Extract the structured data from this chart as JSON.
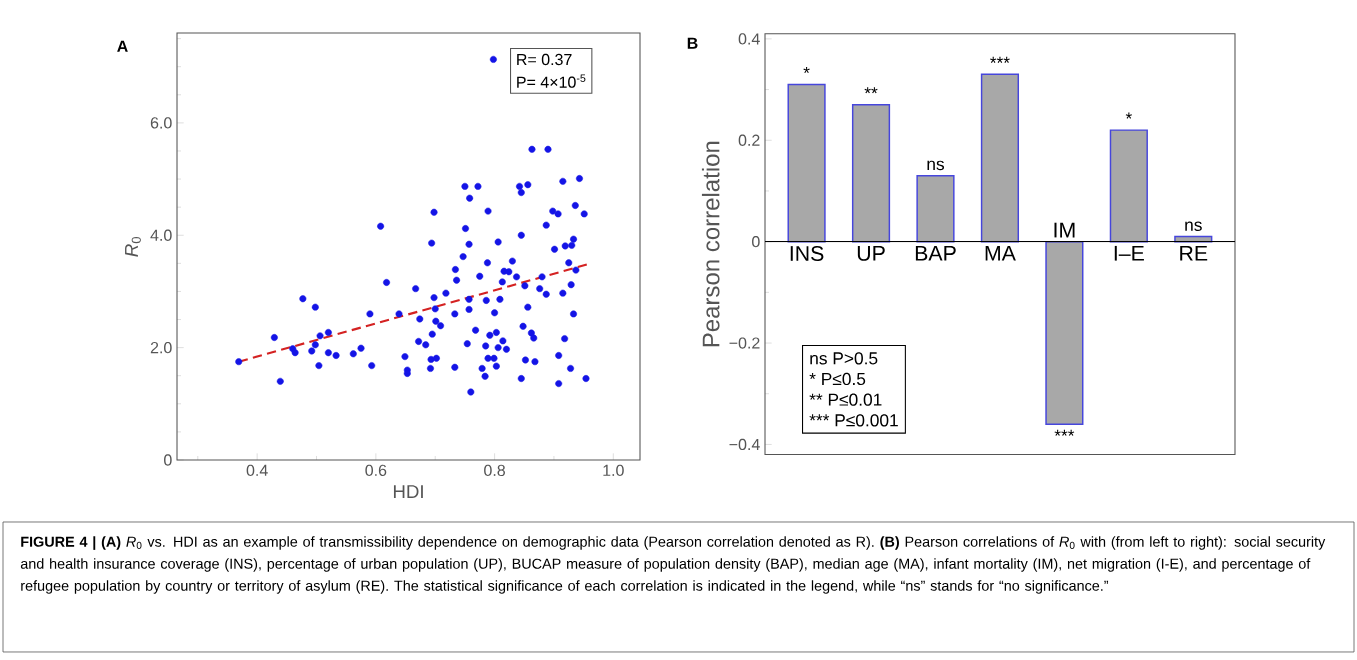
{
  "chart_data": [
    {
      "type": "scatter",
      "xlabel": "HDI",
      "ylabel": "*R*$_{0}$",
      "xlim": [
        0.265,
        1.045
      ],
      "ylim": [
        0,
        7.6
      ],
      "xticks": [
        {
          "value": 0.3,
          "label": null
        },
        0.4,
        {
          "value": 0.5,
          "label": null
        },
        0.6,
        {
          "value": 0.7,
          "label": null
        },
        0.8,
        {
          "value": 0.9,
          "label": null
        },
        {
          "value": 1.0,
          "label": "1.0"
        }
      ],
      "yticks": [
        0,
        {
          "value": 0.5,
          "label": null
        },
        {
          "value": 1.0,
          "label": null
        },
        {
          "value": 1.5,
          "label": null
        },
        {
          "value": 2.0,
          "label": "2.0"
        },
        {
          "value": 2.5,
          "label": null
        },
        {
          "value": 3.0,
          "label": null
        },
        {
          "value": 3.5,
          "label": null
        },
        {
          "value": 4.0,
          "label": "4.0"
        },
        {
          "value": 4.5,
          "label": null
        },
        {
          "value": 5.0,
          "label": null
        },
        {
          "value": 5.5,
          "label": null
        },
        {
          "value": 6.0,
          "label": "6.0"
        },
        {
          "value": 6.5,
          "label": null
        },
        {
          "value": 7.0,
          "label": null
        },
        {
          "value": 7.5,
          "label": null
        }
      ],
      "annotations": [
        "A",
        "R= 0.37",
        "P= 4×10$^{-5}$",
        "**FIGURE 4 | (A)** *R*$_{0}$ vs. HDI as an example of transmissibility dependence on demographic data (Pearson correlation denoted as R). **(B)** Pearson correlations of *R*$_{0}$ with (from left to right): social security and health insurance coverage (INS), percentage of urban population (UP), BUCAP measure of population density (BAP), median age (MA), infant mortality (IM), net migration (I-E), and percentage of refugee population by country or territory of asylum (RE). The statistical significance of each correlation is indicated in the legend, while “ns” stands for “no significance.”"
      ],
      "series": [
        {
          "type": "scatter",
          "color": "#1414e6",
          "marker": "circle",
          "x": [
            0.369,
            0.429,
            0.439,
            0.46,
            0.464,
            0.477,
            0.492,
            0.498,
            0.498,
            0.504,
            0.506,
            0.52,
            0.52,
            0.533,
            0.562,
            0.575,
            0.59,
            0.593,
            0.608,
            0.618,
            0.639,
            0.798,
            0.649,
            0.653,
            0.653,
            0.667,
            0.674,
            0.672,
            0.684,
            0.692,
            0.693,
            0.702,
            0.694,
            0.698,
            0.695,
            0.698,
            0.7,
            0.701,
            0.709,
            0.718,
            0.733,
            0.733,
            0.734,
            0.736,
            0.747,
            0.751,
            0.75,
            0.758,
            0.772,
            0.757,
            0.757,
            0.757,
            0.754,
            0.76,
            0.768,
            0.775,
            0.779,
            0.784,
            0.785,
            0.786,
            0.788,
            0.789,
            0.789,
            0.792,
            0.799,
            0.8,
            0.803,
            0.803,
            0.806,
            0.809,
            0.806,
            0.813,
            0.814,
            0.816,
            0.82,
            0.824,
            0.83,
            0.837,
            0.845,
            0.842,
            0.845,
            0.856,
            0.845,
            0.848,
            0.851,
            0.852,
            0.856,
            0.862,
            0.866,
            0.868,
            0.863,
            0.89,
            0.876,
            0.88,
            0.887,
            0.887,
            0.898,
            0.907,
            0.901,
            0.908,
            0.908,
            0.915,
            0.915,
            0.918,
            0.919,
            0.925,
            0.929,
            0.928,
            0.93,
            0.933,
            0.933,
            0.936,
            0.937,
            0.943,
            0.951,
            0.954
          ],
          "values": [
            1.75,
            2.18,
            1.4,
            1.98,
            1.91,
            2.87,
            1.94,
            2.72,
            2.05,
            1.68,
            2.21,
            2.27,
            1.91,
            1.86,
            1.89,
            1.99,
            2.6,
            1.68,
            4.16,
            3.16,
            2.6,
            7.13,
            1.84,
            1.6,
            1.54,
            3.05,
            2.51,
            2.11,
            2.05,
            1.63,
            1.79,
            1.81,
            3.86,
            4.41,
            2.24,
            2.89,
            2.69,
            2.47,
            2.39,
            2.97,
            2.6,
            1.65,
            3.39,
            3.2,
            3.62,
            4.12,
            4.87,
            4.66,
            4.87,
            3.84,
            2.86,
            2.68,
            2.07,
            1.21,
            2.31,
            3.27,
            1.63,
            1.49,
            2.03,
            2.84,
            3.51,
            4.43,
            1.81,
            2.22,
            1.81,
            2.62,
            1.67,
            2.27,
            3.88,
            2.86,
            2.0,
            3.17,
            2.12,
            3.36,
            1.97,
            3.35,
            3.54,
            3.26,
            4.0,
            4.87,
            4.76,
            4.9,
            1.45,
            2.38,
            3.1,
            1.78,
            2.72,
            2.26,
            2.17,
            1.75,
            5.53,
            5.53,
            3.05,
            3.26,
            2.95,
            4.18,
            4.43,
            4.38,
            3.75,
            1.86,
            1.36,
            4.96,
            2.97,
            2.16,
            3.81,
            3.51,
            3.12,
            1.63,
            3.82,
            2.6,
            3.93,
            4.53,
            3.38,
            5.01,
            4.38,
            1.45
          ]
        },
        {
          "type": "line",
          "color": "#d42222",
          "line_style": "dashed",
          "marker": "none",
          "x": [
            0.369,
            0.956
          ],
          "values": [
            1.75,
            3.48
          ]
        }
      ]
    },
    {
      "type": "bar",
      "ylabel": "Pearson correlation",
      "categories": [
        "INS",
        "UP",
        "BAP",
        "MA",
        "IM",
        "I–E",
        "RE"
      ],
      "values": [
        0.31,
        0.27,
        0.13,
        0.33,
        -0.36,
        0.22,
        0.01
      ],
      "color": "#a8a8a8",
      "ylim": [
        -0.42,
        0.41
      ],
      "yticks": [
        {
          "value": -0.4,
          "label": "−0.4"
        },
        {
          "value": -0.3,
          "label": null
        },
        {
          "value": -0.2,
          "label": "−0.2"
        },
        {
          "value": -0.1,
          "label": null
        },
        0,
        {
          "value": 0.1,
          "label": null
        },
        0.2,
        {
          "value": 0.3,
          "label": null
        },
        0.4
      ],
      "annotations": [
        "B",
        {
          "text": "*",
          "x": "INS",
          "y": 0.31
        },
        {
          "text": "**",
          "x": "UP",
          "y": 0.27
        },
        {
          "text": "ns",
          "x": "BAP",
          "y": 0.13
        },
        {
          "text": "***",
          "x": "MA",
          "y": 0.33
        },
        {
          "text": "***",
          "x": "IM",
          "y": -0.36
        },
        {
          "text": "*",
          "x": "I–E",
          "y": 0.22
        },
        {
          "text": "ns",
          "x": "RE",
          "y": 0.01
        },
        "ns P>0.5",
        "* P≤0.5",
        "** P≤0.01",
        "*** P≤0.001"
      ]
    }
  ]
}
